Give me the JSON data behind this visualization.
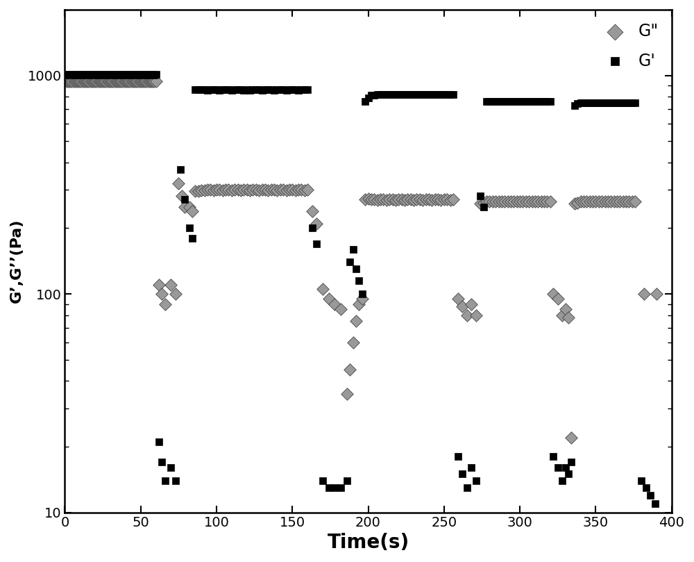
{
  "xlabel": "Time(s)",
  "ylabel": "G’,G’’(Pa)",
  "xlim": [
    0,
    400
  ],
  "background_color": "#ffffff",
  "G_prime_color": "#000000",
  "G_double_prime_color": "#999999",
  "G_prime_marker": "s",
  "G_double_prime_marker": "D",
  "G_prime_markersize": 7,
  "G_double_prime_markersize": 9,
  "G_prime_x": [
    1,
    2,
    3,
    4,
    5,
    6,
    7,
    8,
    9,
    10,
    11,
    12,
    13,
    14,
    15,
    16,
    17,
    18,
    19,
    20,
    21,
    22,
    23,
    24,
    25,
    26,
    27,
    28,
    29,
    30,
    31,
    32,
    33,
    34,
    35,
    36,
    37,
    38,
    39,
    40,
    41,
    42,
    43,
    44,
    45,
    46,
    47,
    48,
    49,
    50,
    51,
    52,
    53,
    54,
    55,
    56,
    57,
    58,
    59,
    60,
    62,
    64,
    66,
    70,
    73,
    76,
    79,
    82,
    84,
    86,
    88,
    90,
    92,
    94,
    96,
    98,
    100,
    102,
    104,
    106,
    108,
    110,
    112,
    114,
    116,
    118,
    120,
    122,
    124,
    126,
    128,
    130,
    132,
    134,
    136,
    138,
    140,
    142,
    144,
    146,
    148,
    150,
    152,
    154,
    156,
    158,
    160,
    163,
    166,
    170,
    174,
    178,
    182,
    186,
    188,
    190,
    192,
    194,
    196,
    198,
    200,
    202,
    204,
    206,
    208,
    210,
    212,
    214,
    216,
    218,
    220,
    222,
    224,
    226,
    228,
    230,
    232,
    234,
    236,
    238,
    240,
    242,
    244,
    246,
    248,
    250,
    252,
    254,
    256,
    259,
    262,
    265,
    268,
    271,
    274,
    276,
    278,
    280,
    282,
    284,
    286,
    288,
    290,
    292,
    294,
    296,
    298,
    300,
    302,
    304,
    306,
    308,
    310,
    312,
    314,
    316,
    318,
    320,
    322,
    325,
    328,
    330,
    332,
    334,
    336,
    338,
    340,
    342,
    344,
    346,
    348,
    350,
    352,
    354,
    356,
    358,
    360,
    362,
    364,
    366,
    368,
    370,
    372,
    374,
    376,
    380,
    383,
    386,
    389
  ],
  "G_prime_y": [
    1010,
    1008,
    1005,
    1008,
    1010,
    1008,
    1005,
    1008,
    1010,
    1008,
    1005,
    1008,
    1010,
    1008,
    1005,
    1008,
    1010,
    1008,
    1005,
    1008,
    1010,
    1008,
    1005,
    1008,
    1010,
    1008,
    1005,
    1008,
    1010,
    1008,
    1005,
    1008,
    1010,
    1008,
    1005,
    1008,
    1010,
    1008,
    1005,
    1008,
    1010,
    1008,
    1005,
    1008,
    1010,
    1008,
    1005,
    1008,
    1010,
    1008,
    1005,
    1008,
    1010,
    1008,
    1005,
    1008,
    1010,
    1008,
    1005,
    1008,
    21,
    17,
    14,
    16,
    14,
    370,
    270,
    200,
    180,
    860,
    862,
    860,
    860,
    858,
    860,
    862,
    860,
    858,
    860,
    862,
    860,
    858,
    860,
    862,
    860,
    858,
    860,
    858,
    860,
    862,
    860,
    858,
    860,
    862,
    860,
    858,
    860,
    862,
    860,
    858,
    860,
    862,
    860,
    858,
    860,
    862,
    860,
    200,
    170,
    14,
    13,
    13,
    13,
    14,
    140,
    160,
    130,
    115,
    100,
    760,
    790,
    810,
    815,
    818,
    820,
    818,
    820,
    820,
    820,
    818,
    820,
    820,
    820,
    818,
    820,
    820,
    820,
    818,
    820,
    820,
    820,
    818,
    820,
    820,
    820,
    818,
    820,
    820,
    820,
    18,
    15,
    13,
    16,
    14,
    280,
    250,
    760,
    762,
    760,
    758,
    760,
    762,
    760,
    758,
    760,
    762,
    760,
    758,
    760,
    762,
    760,
    758,
    760,
    762,
    760,
    758,
    760,
    762,
    18,
    16,
    14,
    16,
    15,
    17,
    730,
    742,
    750,
    750,
    748,
    750,
    750,
    748,
    750,
    750,
    748,
    750,
    750,
    748,
    750,
    750,
    748,
    750,
    750,
    748,
    750,
    14,
    13,
    12,
    11
  ],
  "G_double_prime_x": [
    1,
    2,
    3,
    4,
    5,
    6,
    7,
    8,
    9,
    10,
    11,
    12,
    13,
    14,
    15,
    16,
    17,
    18,
    19,
    20,
    21,
    22,
    23,
    24,
    25,
    26,
    27,
    28,
    29,
    30,
    31,
    32,
    33,
    34,
    35,
    36,
    37,
    38,
    39,
    40,
    41,
    42,
    43,
    44,
    45,
    46,
    47,
    48,
    49,
    50,
    51,
    52,
    53,
    54,
    55,
    56,
    57,
    58,
    59,
    60,
    62,
    64,
    66,
    70,
    73,
    75,
    77,
    79,
    82,
    84,
    86,
    88,
    90,
    92,
    94,
    96,
    98,
    100,
    102,
    104,
    106,
    108,
    110,
    112,
    114,
    116,
    118,
    120,
    122,
    124,
    126,
    128,
    130,
    132,
    134,
    136,
    138,
    140,
    142,
    144,
    146,
    148,
    150,
    152,
    154,
    156,
    158,
    160,
    163,
    166,
    170,
    174,
    178,
    182,
    186,
    188,
    190,
    192,
    194,
    196,
    198,
    200,
    202,
    204,
    206,
    208,
    210,
    212,
    214,
    216,
    218,
    220,
    222,
    224,
    226,
    228,
    230,
    232,
    234,
    236,
    238,
    240,
    242,
    244,
    246,
    248,
    250,
    252,
    254,
    256,
    259,
    262,
    265,
    268,
    271,
    274,
    276,
    278,
    280,
    282,
    284,
    286,
    288,
    290,
    292,
    294,
    296,
    298,
    300,
    302,
    304,
    306,
    308,
    310,
    312,
    314,
    316,
    318,
    320,
    322,
    325,
    328,
    330,
    332,
    334,
    336,
    338,
    340,
    342,
    344,
    346,
    348,
    350,
    352,
    354,
    356,
    358,
    360,
    362,
    364,
    366,
    368,
    370,
    372,
    374,
    376,
    382,
    390
  ],
  "G_double_prime_y": [
    940,
    938,
    942,
    938,
    940,
    938,
    942,
    938,
    940,
    938,
    942,
    938,
    940,
    938,
    942,
    938,
    940,
    938,
    942,
    938,
    940,
    938,
    942,
    938,
    940,
    938,
    942,
    938,
    940,
    938,
    942,
    938,
    940,
    938,
    942,
    938,
    940,
    938,
    942,
    938,
    940,
    938,
    942,
    938,
    940,
    938,
    942,
    938,
    940,
    938,
    942,
    938,
    940,
    938,
    942,
    938,
    940,
    938,
    942,
    938,
    110,
    100,
    90,
    110,
    100,
    320,
    280,
    250,
    250,
    240,
    295,
    295,
    298,
    298,
    300,
    300,
    298,
    300,
    300,
    298,
    300,
    300,
    298,
    300,
    300,
    298,
    300,
    300,
    298,
    300,
    300,
    298,
    300,
    300,
    298,
    300,
    300,
    298,
    300,
    300,
    298,
    300,
    300,
    298,
    300,
    300,
    298,
    300,
    240,
    210,
    105,
    95,
    90,
    85,
    35,
    45,
    60,
    75,
    90,
    95,
    270,
    272,
    270,
    270,
    268,
    270,
    270,
    268,
    270,
    270,
    268,
    270,
    270,
    268,
    270,
    270,
    268,
    270,
    270,
    268,
    270,
    270,
    268,
    270,
    270,
    268,
    270,
    270,
    268,
    270,
    95,
    88,
    80,
    90,
    80,
    260,
    262,
    265,
    265,
    265,
    265,
    265,
    265,
    265,
    265,
    265,
    265,
    265,
    265,
    265,
    265,
    265,
    265,
    265,
    265,
    265,
    265,
    265,
    265,
    100,
    95,
    80,
    85,
    78,
    22,
    260,
    262,
    265,
    265,
    265,
    265,
    265,
    265,
    265,
    265,
    265,
    265,
    265,
    265,
    265,
    265,
    265,
    265,
    265,
    265,
    265,
    100,
    100
  ]
}
